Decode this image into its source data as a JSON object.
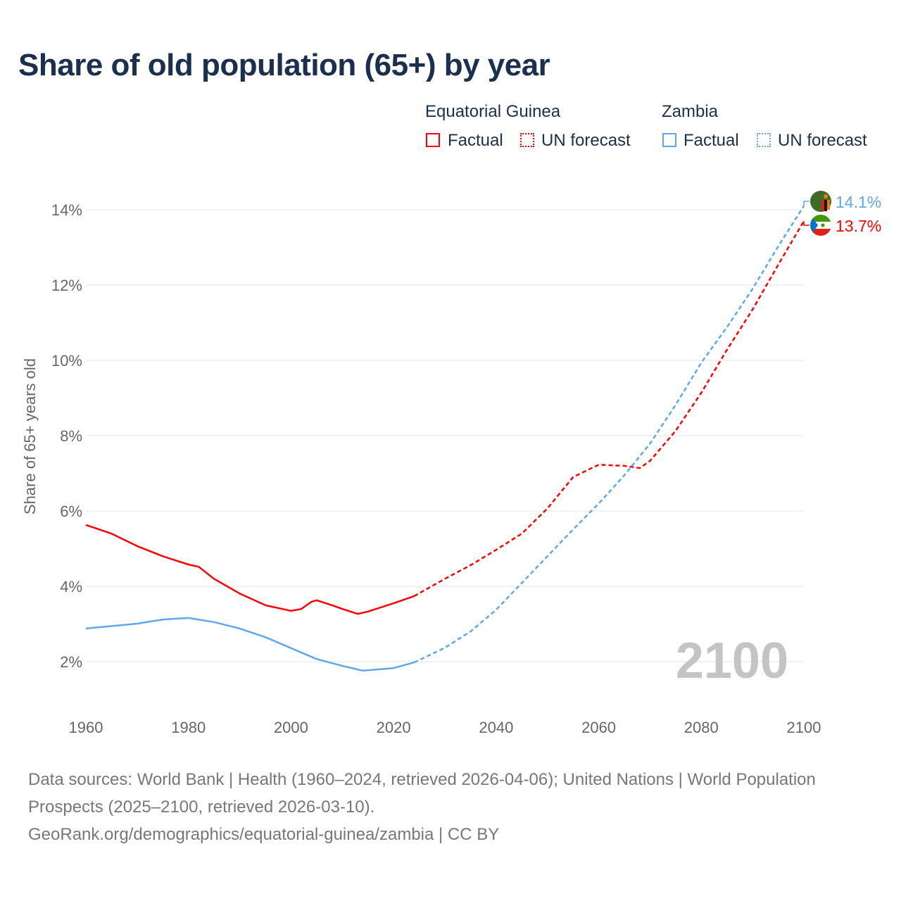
{
  "chart_data": {
    "type": "line",
    "title": "Share of old population (65+) by year",
    "xlabel": "",
    "ylabel": "Share of 65+ years old",
    "xlim": [
      1960,
      2100
    ],
    "ylim": [
      1,
      14.6
    ],
    "x_ticks": [
      "1960",
      "1980",
      "2000",
      "2020",
      "2040",
      "2060",
      "2080",
      "2100"
    ],
    "x_tick_values": [
      1960,
      1980,
      2000,
      2020,
      2040,
      2060,
      2080,
      2100
    ],
    "y_ticks": [
      "2%",
      "4%",
      "6%",
      "8%",
      "10%",
      "12%",
      "14%"
    ],
    "y_tick_values": [
      2,
      4,
      6,
      8,
      10,
      12,
      14
    ],
    "grid": true,
    "year_watermark": "2100",
    "legend": {
      "placement": "top-right",
      "groups": [
        {
          "country": "Equatorial Guinea",
          "factual": "Factual",
          "forecast": "UN forecast"
        },
        {
          "country": "Zambia",
          "factual": "Factual",
          "forecast": "UN forecast"
        }
      ]
    },
    "series": [
      {
        "name": "Equatorial Guinea",
        "color": "#ff0000",
        "end_label": "13.7%",
        "factual": {
          "x": [
            1960,
            1965,
            1970,
            1975,
            1980,
            1982,
            1985,
            1990,
            1995,
            2000,
            2002,
            2004,
            2005,
            2008,
            2010,
            2013,
            2015,
            2020,
            2024
          ],
          "y": [
            5.63,
            5.4,
            5.07,
            4.8,
            4.58,
            4.52,
            4.2,
            3.81,
            3.5,
            3.35,
            3.4,
            3.59,
            3.63,
            3.5,
            3.4,
            3.27,
            3.33,
            3.55,
            3.74
          ]
        },
        "forecast": {
          "x": [
            2024,
            2030,
            2035,
            2040,
            2045,
            2050,
            2055,
            2060,
            2065,
            2068,
            2070,
            2075,
            2080,
            2085,
            2090,
            2095,
            2100
          ],
          "y": [
            3.74,
            4.2,
            4.56,
            4.97,
            5.4,
            6.07,
            6.9,
            7.23,
            7.2,
            7.14,
            7.33,
            8.13,
            9.14,
            10.28,
            11.35,
            12.54,
            13.7
          ]
        }
      },
      {
        "name": "Zambia",
        "color": "#5fa8ec",
        "end_label": "14.1%",
        "factual": {
          "x": [
            1960,
            1970,
            1975,
            1980,
            1985,
            1990,
            1995,
            2000,
            2005,
            2010,
            2014,
            2020,
            2024
          ],
          "y": [
            2.88,
            3.01,
            3.12,
            3.16,
            3.05,
            2.88,
            2.65,
            2.36,
            2.07,
            1.89,
            1.76,
            1.83,
            1.98
          ]
        },
        "forecast": {
          "x": [
            2024,
            2030,
            2035,
            2040,
            2045,
            2050,
            2055,
            2060,
            2065,
            2070,
            2075,
            2080,
            2085,
            2090,
            2095,
            2100
          ],
          "y": [
            1.98,
            2.37,
            2.8,
            3.38,
            4.09,
            4.8,
            5.51,
            6.2,
            6.95,
            7.79,
            8.82,
            9.94,
            10.88,
            11.9,
            13.03,
            14.1
          ]
        }
      }
    ]
  },
  "source": {
    "line1": "Data sources: World Bank | Health (1960–2024, retrieved 2026-04-06); United Nations | World Population Prospects (2025–2100, retrieved 2026-03-10).",
    "line2": "GeoRank.org/demographics/equatorial-guinea/zambia | CC BY"
  }
}
